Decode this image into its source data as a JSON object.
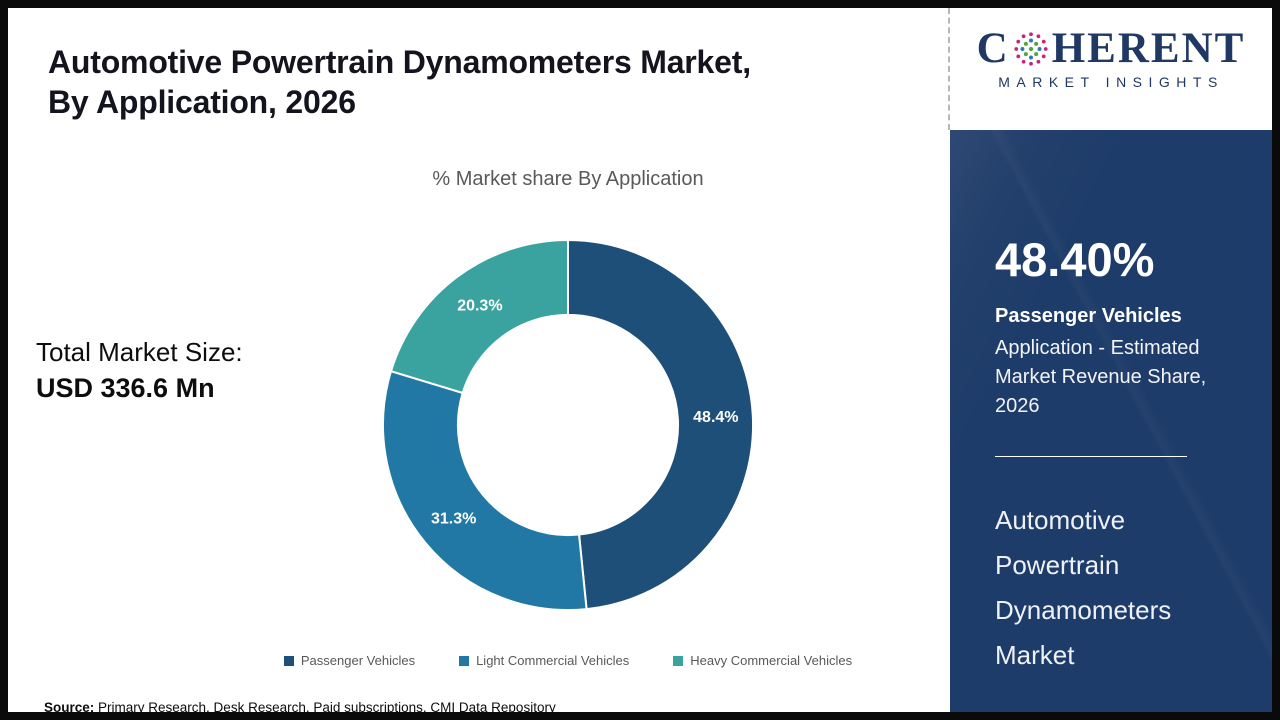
{
  "header": {
    "title_line1": "Automotive Powertrain Dynamometers Market,",
    "title_line2": "By Application, 2026"
  },
  "logo": {
    "brand_prefix": "C",
    "brand_suffix": "HERENT",
    "tagline": "MARKET INSIGHTS"
  },
  "main": {
    "total_market_label": "Total Market Size:",
    "total_market_value": "USD 336.6 Mn"
  },
  "chart_data": {
    "type": "pie",
    "subtype": "donut",
    "title": "% Market share By Application",
    "categories": [
      "Passenger Vehicles",
      "Light Commercial Vehicles",
      "Heavy Commercial Vehicles"
    ],
    "values": [
      48.4,
      31.3,
      20.3
    ],
    "data_labels": [
      "48.4%",
      "31.3%",
      "20.3%"
    ],
    "colors": [
      "#1e4f79",
      "#2278a5",
      "#3aa3a0"
    ],
    "start_angle_deg": 0,
    "direction": "clockwise",
    "inner_radius_ratio": 0.595,
    "legend_position": "bottom",
    "total_market_size": "USD 336.6 Mn"
  },
  "sidebar": {
    "background_color": "#1e3c69",
    "stat_value": "48.40%",
    "stat_title": "Passenger Vehicles",
    "stat_description": "Application - Estimated Market Revenue Share, 2026",
    "market_name": "Automotive Powertrain Dynamometers Market"
  },
  "footer": {
    "source_label": "Source:",
    "source_text": "Primary Research, Desk Research, Paid subscriptions, CMI Data Repository"
  }
}
